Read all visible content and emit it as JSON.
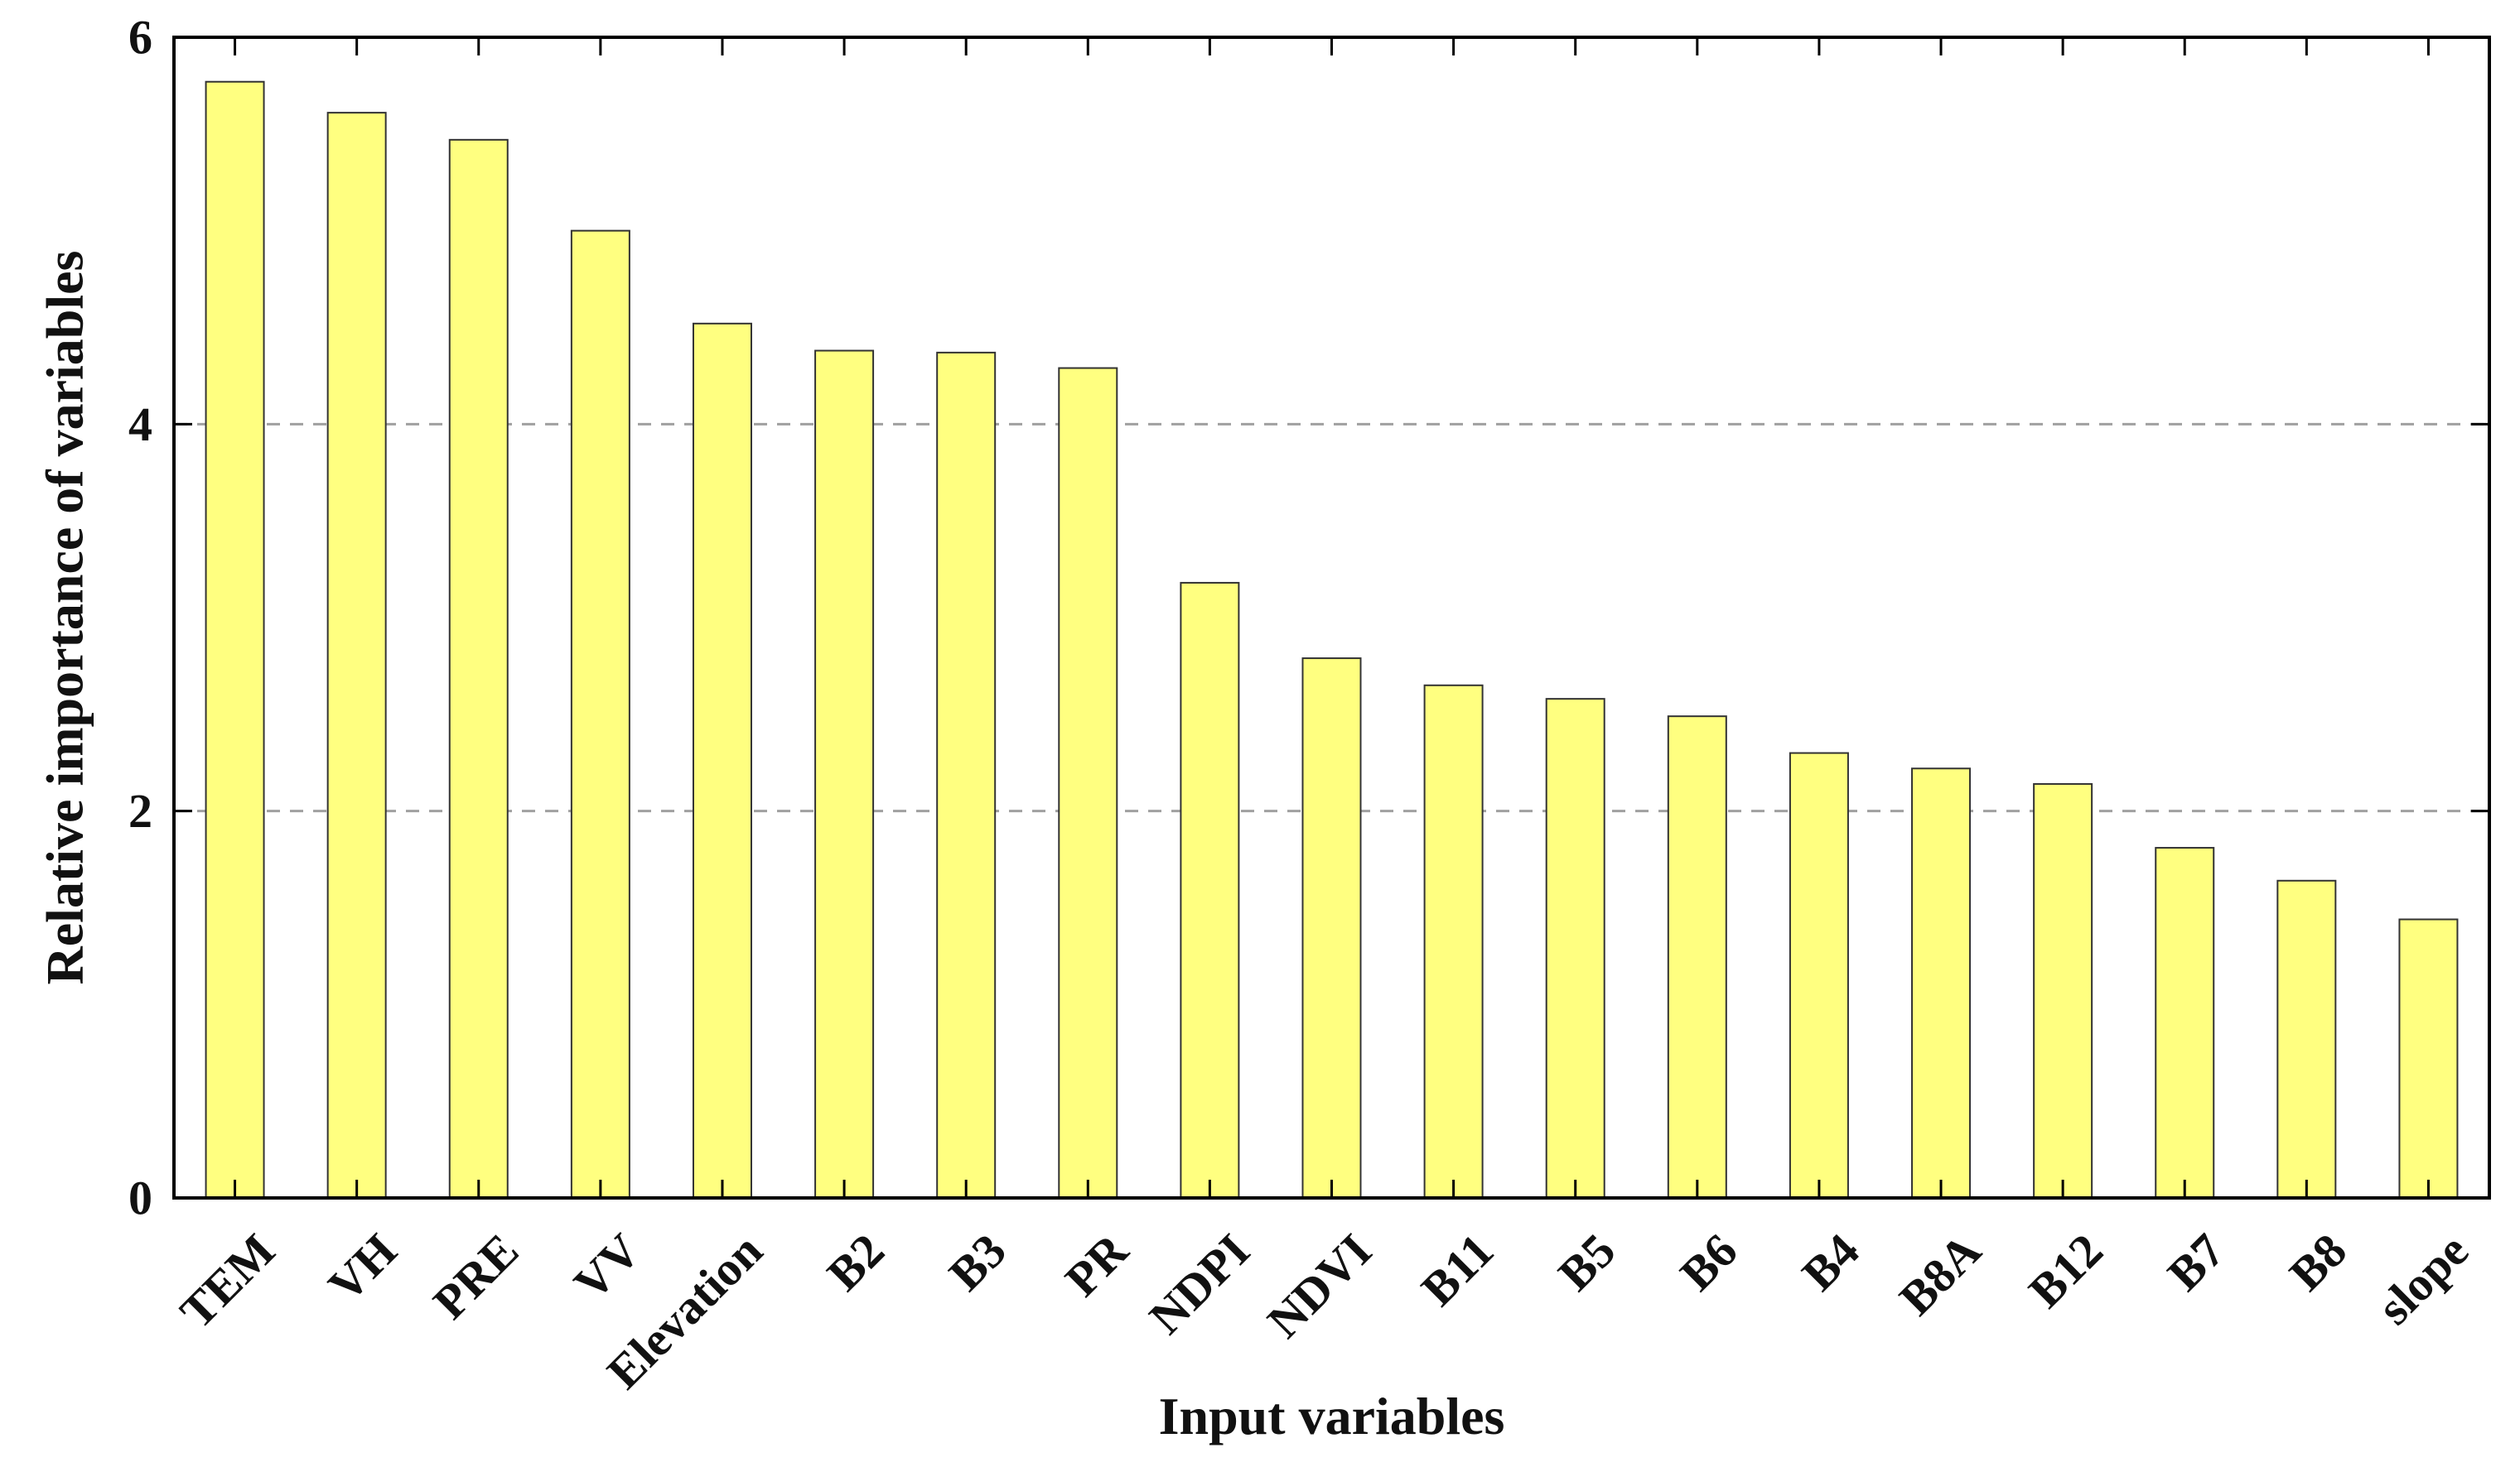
{
  "chart_data": {
    "type": "bar",
    "title": "",
    "xlabel": "Input variables",
    "ylabel": "Relative importance of variables",
    "categories": [
      "TEM",
      "VH",
      "PRE",
      "VV",
      "Elevation",
      "B2",
      "B3",
      "PR",
      "NDPI",
      "NDVI",
      "B11",
      "B5",
      "B6",
      "B4",
      "B8A",
      "B12",
      "B7",
      "B8",
      "slope"
    ],
    "values": [
      5.77,
      5.61,
      5.47,
      5.0,
      4.52,
      4.38,
      4.37,
      4.29,
      3.18,
      2.79,
      2.65,
      2.58,
      2.49,
      2.3,
      2.22,
      2.14,
      1.81,
      1.64,
      1.44
    ],
    "ylim": [
      0,
      6
    ],
    "yticks": [
      "0",
      "2",
      "4",
      "6"
    ],
    "grid": "horizontal dashed",
    "bar_color": "#ffff80",
    "bar_edge_color": "#333333",
    "grid_color": "#a0a0a0",
    "axis_color": "#000000"
  }
}
